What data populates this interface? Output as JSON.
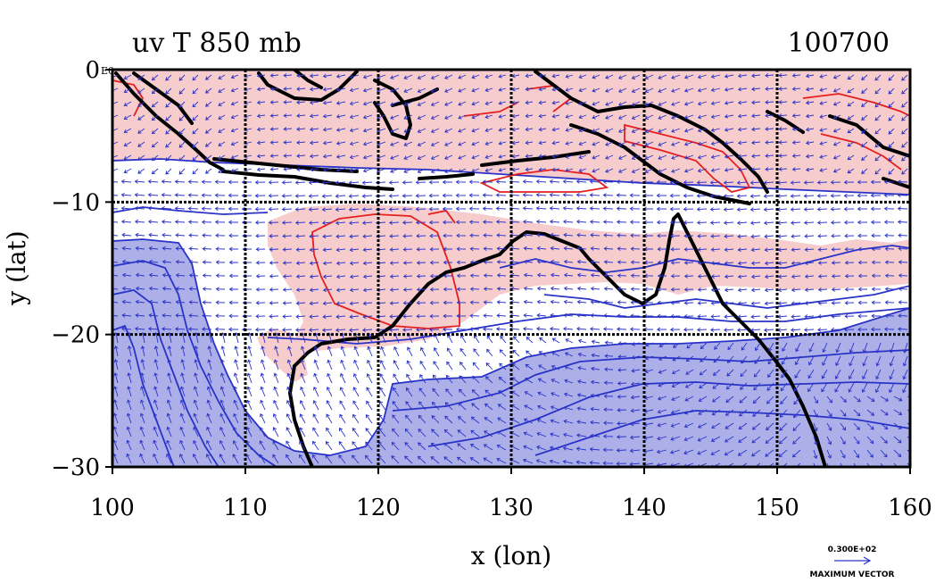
{
  "figure": {
    "title_left": "uv T 850 mb",
    "title_right": "100700",
    "xlabel": "x (lon)",
    "ylabel": "y (lat)",
    "corner_tag": "E0",
    "reference_vector": {
      "value_label": "0.300E+02",
      "caption": "MAXIMUM VECTOR"
    }
  },
  "axes": {
    "x": {
      "min": 100,
      "max": 160,
      "ticks": [
        100,
        110,
        120,
        130,
        140,
        150,
        160
      ],
      "tick_labels": [
        "100",
        "110",
        "120",
        "130",
        "140",
        "150",
        "160"
      ]
    },
    "y": {
      "min": -30,
      "max": 0,
      "ticks": [
        0,
        -10,
        -20,
        -30
      ],
      "tick_labels": [
        "0",
        "−10",
        "−20",
        "−30"
      ]
    },
    "grid": true
  },
  "colors": {
    "warm_fill": "#f7cccc",
    "cold_fill": "#adb0e8",
    "warm_contour": "#e51f1f",
    "cold_contour": "#2a33c8",
    "vector": "#2a33c8",
    "coastline": "#000000"
  },
  "regions": {
    "warm_shading": "north of about 8S and over northern Australia (14S-20S, 115-128E; 12S-16S, 130-150E)",
    "cold_shading": "south of about 20S east of 122E and 18S-30S west of 108E"
  }
}
